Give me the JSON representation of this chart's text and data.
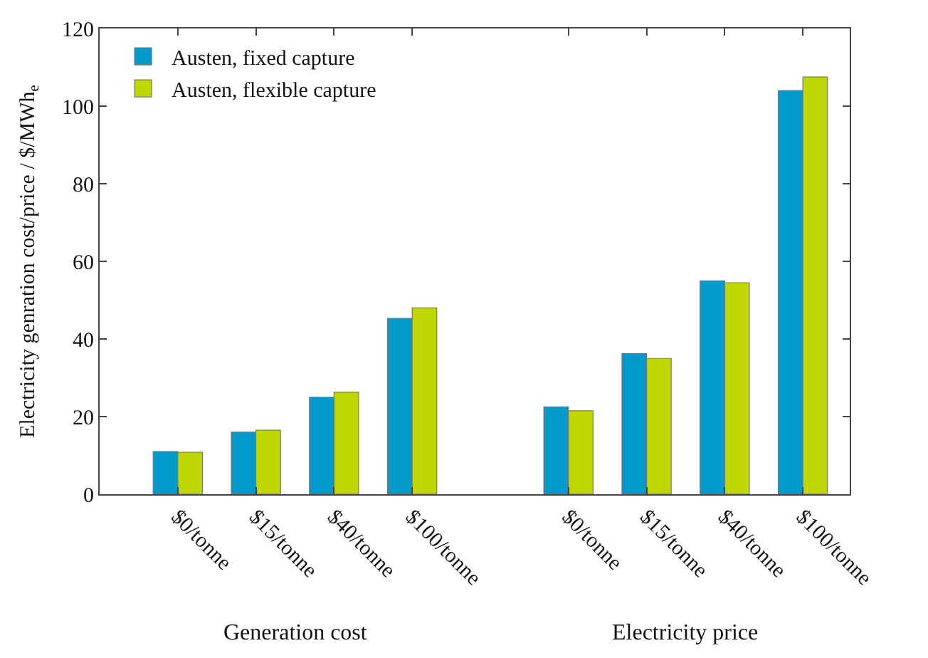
{
  "chart_data": {
    "type": "bar",
    "ylabel": "Electricity genration cost/price / $/MWh$_{e}$",
    "categories": [
      "$0/tonne",
      "$15/tonne",
      "$40/tonne",
      "$100/tonne",
      null,
      "$0/tonne",
      "$15/tonne",
      "$40/tonne",
      "$100/tonne"
    ],
    "series": [
      {
        "name": "Austen, fixed capture",
        "color": "#0099cc",
        "values": [
          11,
          16,
          25,
          45.3,
          null,
          22.5,
          36.2,
          55,
          104
        ]
      },
      {
        "name": "Austen, flexible capture",
        "color": "#bfd600",
        "values": [
          10.8,
          16.5,
          26.3,
          48,
          null,
          21.5,
          35,
          54.5,
          107.5
        ]
      }
    ],
    "annotations": [
      "Generation cost",
      "Electricity price"
    ],
    "ylim": [
      0,
      120
    ],
    "yticks": [
      0,
      20,
      40,
      60,
      80,
      100,
      120
    ],
    "grid": false,
    "legend": "top left"
  }
}
